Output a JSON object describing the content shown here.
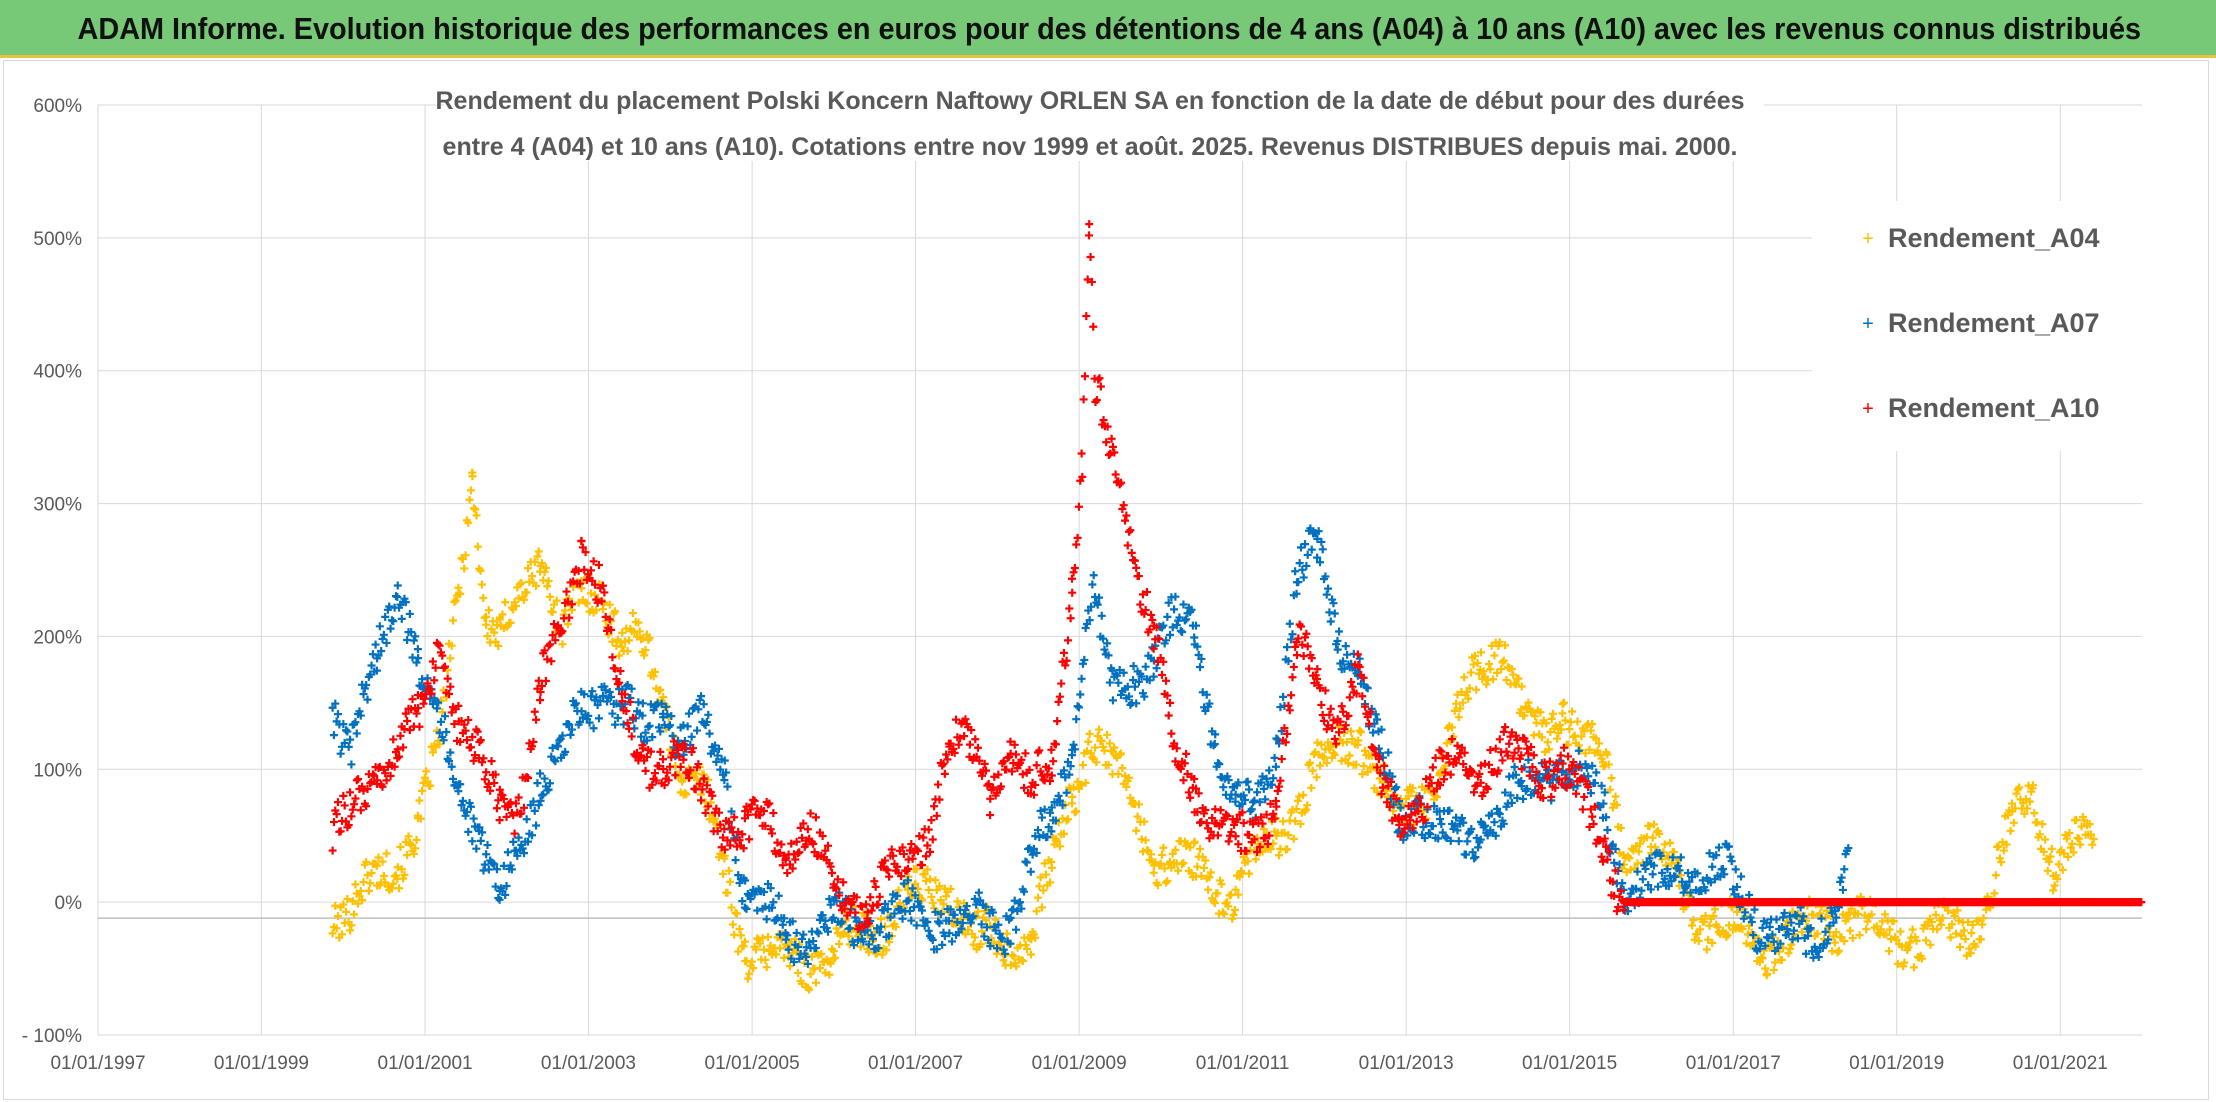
{
  "banner": {
    "title": "ADAM Informe. Evolution historique des performances en euros pour des détentions de 4 ans (A04) à 10 ans (A10) avec les revenus connus distribués"
  },
  "colors": {
    "A04": "#ffc000",
    "A07": "#0070c0",
    "A10": "#ff0000",
    "banner": "#77c877",
    "banner_border": "#e8c43c"
  },
  "chart_data": {
    "type": "scatter",
    "title_lines": [
      "Rendement du placement Polski Koncern Naftowy ORLEN SA en fonction de la date de début pour des durées",
      "entre 4 (A04) et 10 ans (A10). Cotations entre nov 1999 et août. 2025. Revenus DISTRIBUES depuis mai. 2000."
    ],
    "xlabel": "",
    "ylabel": "",
    "xlim": [
      "1997-01-01",
      "2022-01-01"
    ],
    "ylim": [
      -100,
      600
    ],
    "grid": true,
    "marker": "+",
    "legend_position": "right",
    "x_tick_labels": [
      "01/01/1997",
      "01/01/1999",
      "01/01/2001",
      "01/01/2003",
      "01/01/2005",
      "01/01/2007",
      "01/01/2009",
      "01/01/2011",
      "01/01/2013",
      "01/01/2015",
      "01/01/2017",
      "01/01/2019",
      "01/01/2021"
    ],
    "x_ticks": [
      "1997-01-01",
      "1999-01-01",
      "2001-01-01",
      "2003-01-01",
      "2005-01-01",
      "2007-01-01",
      "2009-01-01",
      "2011-01-01",
      "2013-01-01",
      "2015-01-01",
      "2017-01-01",
      "2019-01-01",
      "2021-01-01"
    ],
    "y_tick_labels": [
      "- 100%",
      "0%",
      "100%",
      "200%",
      "300%",
      "400%",
      "500%",
      "600%"
    ],
    "y_ticks": [
      -100,
      0,
      100,
      200,
      300,
      400,
      500,
      600
    ],
    "series": [
      {
        "name": "Rendement_A04",
        "points": [
          [
            "1999-11-15",
            -5
          ],
          [
            "2000-02-01",
            -5
          ],
          [
            "2000-06-01",
            15
          ],
          [
            "2000-09-01",
            35
          ],
          [
            "2000-12-01",
            60
          ],
          [
            "2001-03-01",
            110
          ],
          [
            "2001-06-01",
            240
          ],
          [
            "2001-08-01",
            330
          ],
          [
            "2001-10-01",
            210
          ],
          [
            "2001-12-01",
            190
          ],
          [
            "2002-03-01",
            230
          ],
          [
            "2002-06-01",
            270
          ],
          [
            "2002-09-01",
            200
          ],
          [
            "2002-12-01",
            225
          ],
          [
            "2003-03-01",
            240
          ],
          [
            "2003-06-01",
            200
          ],
          [
            "2003-09-01",
            190
          ],
          [
            "2003-12-01",
            150
          ],
          [
            "2004-03-01",
            100
          ],
          [
            "2004-06-01",
            80
          ],
          [
            "2004-09-01",
            20
          ],
          [
            "2004-12-01",
            -30
          ],
          [
            "2005-03-01",
            -40
          ],
          [
            "2005-06-01",
            -45
          ],
          [
            "2005-09-01",
            -40
          ],
          [
            "2006-01-01",
            -40
          ],
          [
            "2006-06-01",
            -20
          ],
          [
            "2006-12-01",
            0
          ],
          [
            "2007-06-01",
            10
          ],
          [
            "2007-10-01",
            -30
          ],
          [
            "2008-02-01",
            -30
          ],
          [
            "2008-06-01",
            -20
          ],
          [
            "2008-09-01",
            20
          ],
          [
            "2008-12-01",
            80
          ],
          [
            "2009-03-01",
            130
          ],
          [
            "2009-06-01",
            100
          ],
          [
            "2009-09-01",
            70
          ],
          [
            "2009-12-01",
            40
          ],
          [
            "2010-06-01",
            20
          ],
          [
            "2010-12-01",
            10
          ],
          [
            "2011-06-01",
            50
          ],
          [
            "2011-12-01",
            100
          ],
          [
            "2012-06-01",
            130
          ],
          [
            "2012-12-01",
            60
          ],
          [
            "2013-06-01",
            100
          ],
          [
            "2013-12-01",
            180
          ],
          [
            "2014-03-01",
            200
          ],
          [
            "2014-06-01",
            140
          ],
          [
            "2014-09-01",
            120
          ],
          [
            "2014-12-01",
            150
          ],
          [
            "2015-06-01",
            100
          ],
          [
            "2015-09-01",
            40
          ],
          [
            "2016-01-01",
            50
          ],
          [
            "2016-06-01",
            0
          ],
          [
            "2016-12-01",
            -20
          ],
          [
            "2017-06-01",
            -30
          ],
          [
            "2017-12-01",
            -20
          ],
          [
            "2018-06-01",
            -10
          ],
          [
            "2018-12-01",
            -25
          ],
          [
            "2019-06-01",
            -25
          ],
          [
            "2019-12-01",
            -20
          ],
          [
            "2020-03-01",
            10
          ],
          [
            "2020-06-01",
            60
          ],
          [
            "2020-09-01",
            90
          ],
          [
            "2020-12-01",
            30
          ],
          [
            "2021-03-01",
            40
          ],
          [
            "2021-06-01",
            40
          ]
        ]
      },
      {
        "name": "Rendement_A07",
        "points": [
          [
            "1999-11-15",
            150
          ],
          [
            "2000-02-01",
            100
          ],
          [
            "2000-06-01",
            190
          ],
          [
            "2000-09-01",
            250
          ],
          [
            "2000-12-01",
            170
          ],
          [
            "2001-03-01",
            140
          ],
          [
            "2001-06-01",
            100
          ],
          [
            "2001-09-01",
            40
          ],
          [
            "2001-12-01",
            0
          ],
          [
            "2002-03-01",
            50
          ],
          [
            "2002-06-01",
            90
          ],
          [
            "2002-09-01",
            100
          ],
          [
            "2002-12-01",
            150
          ],
          [
            "2003-03-01",
            160
          ],
          [
            "2003-06-01",
            140
          ],
          [
            "2003-09-01",
            130
          ],
          [
            "2003-12-01",
            150
          ],
          [
            "2004-03-01",
            120
          ],
          [
            "2004-06-01",
            130
          ],
          [
            "2004-09-01",
            100
          ],
          [
            "2004-12-01",
            10
          ],
          [
            "2005-03-01",
            -10
          ],
          [
            "2005-06-01",
            -20
          ],
          [
            "2005-09-01",
            -25
          ],
          [
            "2006-01-01",
            -20
          ],
          [
            "2006-06-01",
            -15
          ],
          [
            "2006-12-01",
            -10
          ],
          [
            "2007-06-01",
            -10
          ],
          [
            "2007-12-01",
            -20
          ],
          [
            "2008-03-01",
            -10
          ],
          [
            "2008-06-01",
            30
          ],
          [
            "2008-09-01",
            60
          ],
          [
            "2008-12-01",
            120
          ],
          [
            "2009-03-01",
            240
          ],
          [
            "2009-06-01",
            150
          ],
          [
            "2009-09-01",
            170
          ],
          [
            "2009-12-01",
            190
          ],
          [
            "2010-03-01",
            210
          ],
          [
            "2010-06-01",
            200
          ],
          [
            "2010-09-01",
            130
          ],
          [
            "2010-12-01",
            70
          ],
          [
            "2011-03-01",
            70
          ],
          [
            "2011-06-01",
            120
          ],
          [
            "2011-09-01",
            250
          ],
          [
            "2011-12-01",
            260
          ],
          [
            "2012-03-01",
            200
          ],
          [
            "2012-06-01",
            180
          ],
          [
            "2012-09-01",
            110
          ],
          [
            "2012-12-01",
            60
          ],
          [
            "2013-03-01",
            80
          ],
          [
            "2013-06-01",
            50
          ],
          [
            "2013-09-01",
            40
          ],
          [
            "2013-12-01",
            60
          ],
          [
            "2014-06-01",
            80
          ],
          [
            "2014-12-01",
            110
          ],
          [
            "2015-06-01",
            70
          ],
          [
            "2015-09-01",
            20
          ],
          [
            "2016-01-01",
            10
          ],
          [
            "2016-06-01",
            30
          ],
          [
            "2016-12-01",
            20
          ],
          [
            "2017-06-01",
            -20
          ],
          [
            "2017-12-01",
            -30
          ],
          [
            "2018-03-01",
            -10
          ],
          [
            "2018-06-01",
            30
          ]
        ]
      },
      {
        "name": "Rendement_A10",
        "points": [
          [
            "1999-11-15",
            50
          ],
          [
            "2000-02-01",
            60
          ],
          [
            "2000-06-01",
            100
          ],
          [
            "2000-09-01",
            120
          ],
          [
            "2000-12-01",
            130
          ],
          [
            "2001-03-01",
            190
          ],
          [
            "2001-06-01",
            140
          ],
          [
            "2001-09-01",
            100
          ],
          [
            "2001-12-01",
            70
          ],
          [
            "2002-03-01",
            80
          ],
          [
            "2002-06-01",
            160
          ],
          [
            "2002-09-01",
            200
          ],
          [
            "2002-12-01",
            270
          ],
          [
            "2003-03-01",
            240
          ],
          [
            "2003-06-01",
            140
          ],
          [
            "2003-09-01",
            110
          ],
          [
            "2003-12-01",
            110
          ],
          [
            "2004-03-01",
            100
          ],
          [
            "2004-06-01",
            80
          ],
          [
            "2004-09-01",
            60
          ],
          [
            "2004-12-01",
            50
          ],
          [
            "2005-03-01",
            60
          ],
          [
            "2005-06-01",
            40
          ],
          [
            "2005-09-01",
            60
          ],
          [
            "2006-01-01",
            10
          ],
          [
            "2006-06-01",
            0
          ],
          [
            "2006-12-01",
            30
          ],
          [
            "2007-03-01",
            60
          ],
          [
            "2007-06-01",
            120
          ],
          [
            "2007-09-01",
            110
          ],
          [
            "2007-12-01",
            90
          ],
          [
            "2008-03-01",
            110
          ],
          [
            "2008-06-01",
            80
          ],
          [
            "2008-09-01",
            110
          ],
          [
            "2008-12-01",
            240
          ],
          [
            "2009-01-15",
            330
          ],
          [
            "2009-02-15",
            500
          ],
          [
            "2009-03-15",
            380
          ],
          [
            "2009-06-01",
            330
          ],
          [
            "2009-09-01",
            270
          ],
          [
            "2009-12-01",
            200
          ],
          [
            "2010-03-01",
            110
          ],
          [
            "2010-06-01",
            90
          ],
          [
            "2010-09-01",
            60
          ],
          [
            "2010-12-01",
            40
          ],
          [
            "2011-03-01",
            50
          ],
          [
            "2011-06-01",
            80
          ],
          [
            "2011-09-01",
            190
          ],
          [
            "2011-12-01",
            160
          ],
          [
            "2012-03-01",
            140
          ],
          [
            "2012-06-01",
            170
          ],
          [
            "2012-09-01",
            90
          ],
          [
            "2012-12-01",
            70
          ],
          [
            "2013-03-01",
            70
          ],
          [
            "2013-06-01",
            90
          ],
          [
            "2013-09-01",
            110
          ],
          [
            "2013-12-01",
            100
          ],
          [
            "2014-06-01",
            110
          ],
          [
            "2014-12-01",
            100
          ],
          [
            "2015-03-01",
            70
          ],
          [
            "2015-06-01",
            50
          ],
          [
            "2015-09-01",
            0
          ],
          [
            "2018-01-01",
            0
          ],
          [
            "2021-12-31",
            0
          ]
        ]
      }
    ]
  }
}
